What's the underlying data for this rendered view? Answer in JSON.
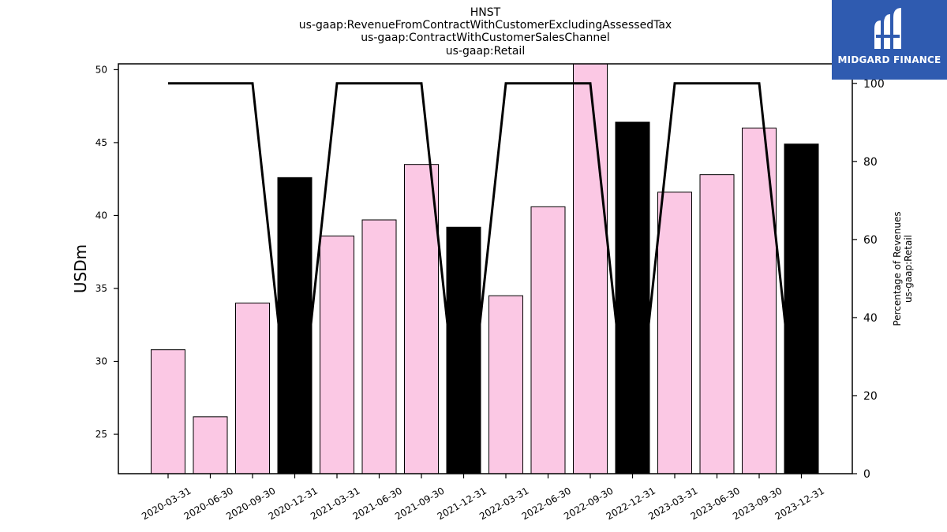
{
  "chart_data": {
    "type": "bar",
    "title_lines": [
      "HNST",
      "us-gaap:RevenueFromContractWithCustomerExcludingAssessedTax",
      "us-gaap:ContractWithCustomerSalesChannel",
      "us-gaap:Retail"
    ],
    "ylabel": "USDm",
    "y2label_lines": [
      "Percentage of Revenues",
      "us-gaap:Retail"
    ],
    "ylim": [
      22.3,
      50.4
    ],
    "y2lim": [
      0,
      105
    ],
    "yticks": [
      25,
      30,
      35,
      40,
      45,
      50
    ],
    "y2ticks": [
      0,
      20,
      40,
      60,
      80,
      100
    ],
    "categories": [
      "2020-03-31",
      "2020-06-30",
      "2020-09-30",
      "2020-12-31",
      "2021-03-31",
      "2021-06-30",
      "2021-09-30",
      "2021-12-31",
      "2022-03-31",
      "2022-06-30",
      "2022-09-30",
      "2022-12-31",
      "2023-03-31",
      "2023-06-30",
      "2023-09-30",
      "2023-12-31"
    ],
    "series": [
      {
        "type": "bar",
        "axis": "left",
        "values": [
          30.8,
          26.2,
          34.0,
          42.6,
          38.6,
          39.7,
          43.5,
          39.2,
          34.5,
          40.6,
          50.8,
          46.4,
          41.6,
          42.8,
          46.0,
          44.9
        ],
        "colors": [
          "#fbc8e4",
          "#fbc8e4",
          "#fbc8e4",
          "#000000",
          "#fbc8e4",
          "#fbc8e4",
          "#fbc8e4",
          "#000000",
          "#fbc8e4",
          "#fbc8e4",
          "#fbc8e4",
          "#000000",
          "#fbc8e4",
          "#fbc8e4",
          "#fbc8e4",
          "#000000"
        ]
      },
      {
        "type": "line",
        "axis": "right",
        "values": [
          100,
          100,
          100,
          null,
          100,
          100,
          100,
          null,
          100,
          100,
          100,
          null,
          100,
          100,
          100,
          null
        ],
        "color": "#000000"
      }
    ],
    "grid": false
  },
  "logo": {
    "text": "MIDGARD FINANCE",
    "background": "#2f5bb0"
  }
}
